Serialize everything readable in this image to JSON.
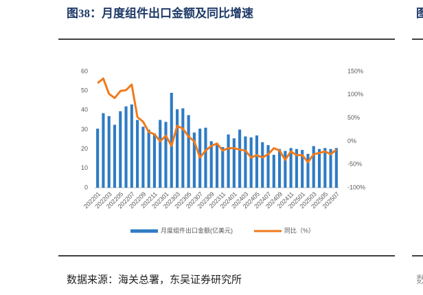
{
  "chart_data": {
    "type": "bar-line",
    "title": "图38：月度组件出口金额及同比增速",
    "source": "数据来源：海关总署，东吴证券研究所",
    "neighbor_title": "图",
    "neighbor_source": "数",
    "categories": [
      "202201",
      null,
      "202203",
      null,
      "202205",
      null,
      "202207",
      null,
      "202209",
      null,
      "202211",
      null,
      "202301",
      null,
      "202303",
      null,
      "202305",
      null,
      "202307",
      null,
      "202309",
      null,
      "202311",
      null,
      "202401",
      null,
      "202403",
      null,
      "202405",
      null,
      "202407",
      null,
      "202409",
      null,
      "202411",
      null,
      "202501",
      null,
      "202503",
      null,
      "202505",
      null,
      "202507"
    ],
    "series": [
      {
        "name": "月度组件出口金额(亿美元)",
        "type": "bar",
        "color": "#2f7bc4",
        "values": [
          30.5,
          38.5,
          37,
          32.5,
          39.5,
          42,
          43,
          35,
          31.5,
          30,
          28,
          35,
          34,
          49,
          40.5,
          41,
          37.5,
          28.5,
          30.5,
          31,
          24,
          23,
          21,
          27.5,
          25.5,
          30,
          26.5,
          26,
          27,
          23.5,
          22,
          17,
          20,
          19,
          20.5,
          20,
          19.5,
          17.5,
          21.5,
          20,
          20.5,
          20,
          20.5
        ]
      },
      {
        "name": "同比（%）",
        "type": "line",
        "axis": "y2",
        "color": "#f07a1b",
        "values": [
          125,
          135,
          102,
          93,
          108,
          110,
          122,
          52,
          42,
          20,
          15,
          0,
          12,
          -10,
          33,
          27,
          10,
          0,
          -35,
          -20,
          -10,
          -5,
          -20,
          -15,
          -15,
          -18,
          -20,
          -35,
          -30,
          -35,
          -28,
          -15,
          -20,
          -40,
          -22,
          -30,
          -30,
          -45,
          -28,
          -25,
          -22,
          -28,
          -18
        ]
      }
    ],
    "ylim": [
      0,
      60
    ],
    "yticks": [
      0,
      10,
      20,
      30,
      40,
      50,
      60
    ],
    "y2lim": [
      -100,
      150
    ],
    "y2ticks": [
      {
        "value": -100,
        "label": "-100%"
      },
      {
        "value": -50,
        "label": "-50%"
      },
      {
        "value": 0,
        "label": "0%"
      },
      {
        "value": 50,
        "label": "50%"
      },
      {
        "value": 100,
        "label": "100%"
      },
      {
        "value": 150,
        "label": "150%"
      }
    ],
    "grid": false,
    "legend": "bottom"
  }
}
